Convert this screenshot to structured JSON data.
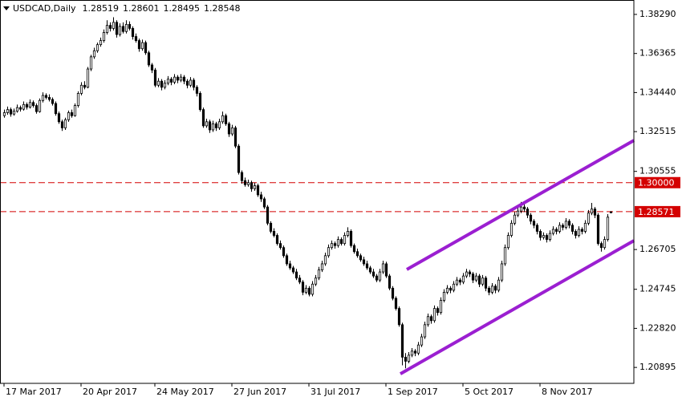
{
  "chart_data": {
    "type": "candlestick",
    "title": "USDCAD,Daily",
    "up_color": "#ffffff",
    "down_color": "#000000",
    "line_color": "#000000",
    "ylim": [
      1.2011,
      1.39
    ],
    "xlim": [
      -1.25,
      196.25
    ],
    "yticks": [
      {
        "value": 1.3829,
        "label": "1.38290"
      },
      1.36365,
      {
        "value": 1.3444,
        "label": "1.34440"
      },
      1.32515,
      1.30555,
      1.26705,
      1.24745,
      {
        "value": 1.2282,
        "label": "1.22820"
      },
      1.20895
    ],
    "xticks": [
      {
        "value": 0,
        "label": "17 Mar 2017"
      },
      {
        "value": 24,
        "label": "20 Apr 2017"
      },
      {
        "value": 47,
        "label": "24 May 2017"
      },
      {
        "value": 71,
        "label": "27 Jun 2017"
      },
      {
        "value": 95,
        "label": "31 Jul 2017"
      },
      {
        "value": 119,
        "label": "1 Sep 2017"
      },
      {
        "value": 143,
        "label": "5 Oct 2017"
      },
      {
        "value": 167,
        "label": "8 Nov 2017"
      }
    ],
    "levels": [
      {
        "value": 1.3,
        "label": "1.30000"
      },
      1.28571
    ],
    "level_color": "#d40000",
    "trendlines": [
      {
        "color": "#9b1fd1",
        "x": [
          125.5,
          196.25
        ],
        "y": [
          1.2572,
          1.3208
        ]
      },
      {
        "color": "#9b1fd1",
        "x": [
          123.5,
          196.25
        ],
        "y": [
          1.2058,
          1.2714
        ]
      }
    ],
    "candles": [
      [
        1.333,
        1.336,
        1.332,
        1.3345
      ],
      [
        1.3345,
        1.3375,
        1.3335,
        1.336
      ],
      [
        1.336,
        1.337,
        1.3325,
        1.3338
      ],
      [
        1.3338,
        1.3365,
        1.333,
        1.3352
      ],
      [
        1.3352,
        1.3385,
        1.3345,
        1.337
      ],
      [
        1.337,
        1.338,
        1.335,
        1.3362
      ],
      [
        1.3362,
        1.34,
        1.3355,
        1.3385
      ],
      [
        1.3385,
        1.3395,
        1.336,
        1.3372
      ],
      [
        1.3372,
        1.341,
        1.3365,
        1.3395
      ],
      [
        1.3395,
        1.3405,
        1.337,
        1.338
      ],
      [
        1.338,
        1.339,
        1.334,
        1.335
      ],
      [
        1.335,
        1.3415,
        1.3345,
        1.3405
      ],
      [
        1.3405,
        1.3445,
        1.3395,
        1.343
      ],
      [
        1.343,
        1.344,
        1.341,
        1.342
      ],
      [
        1.342,
        1.3435,
        1.34,
        1.341
      ],
      [
        1.341,
        1.342,
        1.338,
        1.339
      ],
      [
        1.339,
        1.34,
        1.333,
        1.334
      ],
      [
        1.334,
        1.335,
        1.329,
        1.33
      ],
      [
        1.33,
        1.331,
        1.3255,
        1.327
      ],
      [
        1.327,
        1.332,
        1.326,
        1.331
      ],
      [
        1.331,
        1.3355,
        1.33,
        1.3345
      ],
      [
        1.3345,
        1.336,
        1.332,
        1.333
      ],
      [
        1.333,
        1.339,
        1.3325,
        1.338
      ],
      [
        1.338,
        1.345,
        1.337,
        1.344
      ],
      [
        1.344,
        1.3495,
        1.343,
        1.348
      ],
      [
        1.348,
        1.35,
        1.346,
        1.347
      ],
      [
        1.347,
        1.357,
        1.3465,
        1.356
      ],
      [
        1.356,
        1.363,
        1.355,
        1.362
      ],
      [
        1.362,
        1.3665,
        1.361,
        1.365
      ],
      [
        1.365,
        1.369,
        1.364,
        1.368
      ],
      [
        1.368,
        1.3715,
        1.367,
        1.37
      ],
      [
        1.37,
        1.3755,
        1.369,
        1.374
      ],
      [
        1.374,
        1.38,
        1.373,
        1.3775
      ],
      [
        1.3775,
        1.379,
        1.3745,
        1.376
      ],
      [
        1.376,
        1.3815,
        1.375,
        1.379
      ],
      [
        1.379,
        1.38,
        1.3715,
        1.373
      ],
      [
        1.373,
        1.3785,
        1.372,
        1.377
      ],
      [
        1.377,
        1.379,
        1.3735,
        1.3745
      ],
      [
        1.3745,
        1.38,
        1.3735,
        1.378
      ],
      [
        1.378,
        1.3795,
        1.375,
        1.376
      ],
      [
        1.376,
        1.377,
        1.3705,
        1.372
      ],
      [
        1.372,
        1.3735,
        1.369,
        1.37
      ],
      [
        1.37,
        1.371,
        1.3645,
        1.366
      ],
      [
        1.366,
        1.3705,
        1.365,
        1.369
      ],
      [
        1.369,
        1.37,
        1.363,
        1.364
      ],
      [
        1.364,
        1.365,
        1.357,
        1.358
      ],
      [
        1.358,
        1.359,
        1.354,
        1.3555
      ],
      [
        1.3555,
        1.3565,
        1.347,
        1.348
      ],
      [
        1.348,
        1.3515,
        1.347,
        1.35
      ],
      [
        1.35,
        1.351,
        1.3455,
        1.347
      ],
      [
        1.347,
        1.3505,
        1.346,
        1.349
      ],
      [
        1.349,
        1.3525,
        1.348,
        1.351
      ],
      [
        1.351,
        1.352,
        1.348,
        1.3495
      ],
      [
        1.3495,
        1.3535,
        1.3485,
        1.352
      ],
      [
        1.352,
        1.353,
        1.349,
        1.3505
      ],
      [
        1.3505,
        1.3535,
        1.3495,
        1.352
      ],
      [
        1.352,
        1.353,
        1.3485,
        1.35
      ],
      [
        1.35,
        1.351,
        1.3465,
        1.348
      ],
      [
        1.348,
        1.352,
        1.347,
        1.3505
      ],
      [
        1.3505,
        1.3515,
        1.3455,
        1.347
      ],
      [
        1.347,
        1.348,
        1.3425,
        1.344
      ],
      [
        1.344,
        1.345,
        1.335,
        1.336
      ],
      [
        1.336,
        1.337,
        1.327,
        1.328
      ],
      [
        1.328,
        1.3315,
        1.327,
        1.33
      ],
      [
        1.33,
        1.331,
        1.3245,
        1.326
      ],
      [
        1.326,
        1.3305,
        1.325,
        1.329
      ],
      [
        1.329,
        1.33,
        1.3255,
        1.327
      ],
      [
        1.327,
        1.3315,
        1.326,
        1.33
      ],
      [
        1.33,
        1.335,
        1.329,
        1.333
      ],
      [
        1.333,
        1.334,
        1.328,
        1.329
      ],
      [
        1.329,
        1.33,
        1.3225,
        1.324
      ],
      [
        1.324,
        1.3285,
        1.323,
        1.327
      ],
      [
        1.327,
        1.328,
        1.317,
        1.318
      ],
      [
        1.318,
        1.319,
        1.304,
        1.305
      ],
      [
        1.305,
        1.306,
        1.2995,
        1.301
      ],
      [
        1.301,
        1.3025,
        1.298,
        1.299
      ],
      [
        1.299,
        1.3015,
        1.298,
        1.3
      ],
      [
        1.3,
        1.301,
        1.2955,
        1.297
      ],
      [
        1.297,
        1.3,
        1.296,
        1.2985
      ],
      [
        1.2985,
        1.2995,
        1.293,
        1.294
      ],
      [
        1.294,
        1.2955,
        1.2905,
        1.292
      ],
      [
        1.292,
        1.293,
        1.287,
        1.288
      ],
      [
        1.288,
        1.289,
        1.279,
        1.28
      ],
      [
        1.28,
        1.281,
        1.275,
        1.276
      ],
      [
        1.276,
        1.2775,
        1.273,
        1.274
      ],
      [
        1.274,
        1.275,
        1.269,
        1.27
      ],
      [
        1.27,
        1.2715,
        1.267,
        1.268
      ],
      [
        1.268,
        1.269,
        1.263,
        1.264
      ],
      [
        1.264,
        1.265,
        1.259,
        1.26
      ],
      [
        1.26,
        1.2615,
        1.257,
        1.258
      ],
      [
        1.258,
        1.259,
        1.255,
        1.256
      ],
      [
        1.256,
        1.2575,
        1.252,
        1.253
      ],
      [
        1.253,
        1.2545,
        1.25,
        1.251
      ],
      [
        1.251,
        1.252,
        1.2445,
        1.246
      ],
      [
        1.246,
        1.2495,
        1.245,
        1.248
      ],
      [
        1.248,
        1.249,
        1.244,
        1.245
      ],
      [
        1.245,
        1.2515,
        1.244,
        1.25
      ],
      [
        1.25,
        1.2545,
        1.249,
        1.253
      ],
      [
        1.253,
        1.2585,
        1.252,
        1.257
      ],
      [
        1.257,
        1.2615,
        1.256,
        1.26
      ],
      [
        1.26,
        1.2655,
        1.259,
        1.264
      ],
      [
        1.264,
        1.2695,
        1.263,
        1.268
      ],
      [
        1.268,
        1.2715,
        1.267,
        1.27
      ],
      [
        1.27,
        1.271,
        1.2675,
        1.269
      ],
      [
        1.269,
        1.2735,
        1.268,
        1.272
      ],
      [
        1.272,
        1.273,
        1.269,
        1.27
      ],
      [
        1.27,
        1.2755,
        1.269,
        1.274
      ],
      [
        1.274,
        1.278,
        1.273,
        1.276
      ],
      [
        1.276,
        1.277,
        1.268,
        1.269
      ],
      [
        1.269,
        1.27,
        1.265,
        1.266
      ],
      [
        1.266,
        1.2675,
        1.263,
        1.264
      ],
      [
        1.264,
        1.265,
        1.261,
        1.262
      ],
      [
        1.262,
        1.2635,
        1.259,
        1.26
      ],
      [
        1.26,
        1.2615,
        1.257,
        1.258
      ],
      [
        1.258,
        1.259,
        1.255,
        1.256
      ],
      [
        1.256,
        1.2575,
        1.253,
        1.254
      ],
      [
        1.254,
        1.255,
        1.251,
        1.252
      ],
      [
        1.252,
        1.2575,
        1.251,
        1.256
      ],
      [
        1.256,
        1.2615,
        1.255,
        1.26
      ],
      [
        1.26,
        1.261,
        1.253,
        1.254
      ],
      [
        1.254,
        1.255,
        1.247,
        1.248
      ],
      [
        1.248,
        1.249,
        1.242,
        1.243
      ],
      [
        1.243,
        1.244,
        1.237,
        1.238
      ],
      [
        1.238,
        1.239,
        1.229,
        1.23
      ],
      [
        1.23,
        1.231,
        1.21,
        1.214
      ],
      [
        1.214,
        1.216,
        1.2085,
        1.212
      ],
      [
        1.212,
        1.2165,
        1.211,
        1.215
      ],
      [
        1.215,
        1.2185,
        1.214,
        1.217
      ],
      [
        1.217,
        1.218,
        1.2145,
        1.216
      ],
      [
        1.216,
        1.2215,
        1.215,
        1.22
      ],
      [
        1.22,
        1.2255,
        1.219,
        1.224
      ],
      [
        1.224,
        1.2315,
        1.223,
        1.23
      ],
      [
        1.23,
        1.2355,
        1.229,
        1.234
      ],
      [
        1.234,
        1.235,
        1.2305,
        1.232
      ],
      [
        1.232,
        1.2395,
        1.231,
        1.238
      ],
      [
        1.238,
        1.239,
        1.2345,
        1.236
      ],
      [
        1.236,
        1.2435,
        1.235,
        1.242
      ],
      [
        1.242,
        1.2475,
        1.241,
        1.246
      ],
      [
        1.246,
        1.2495,
        1.245,
        1.248
      ],
      [
        1.248,
        1.249,
        1.2455,
        1.247
      ],
      [
        1.247,
        1.2515,
        1.246,
        1.25
      ],
      [
        1.25,
        1.2535,
        1.249,
        1.252
      ],
      [
        1.252,
        1.253,
        1.2495,
        1.251
      ],
      [
        1.251,
        1.2555,
        1.25,
        1.254
      ],
      [
        1.254,
        1.2575,
        1.253,
        1.256
      ],
      [
        1.256,
        1.257,
        1.2535,
        1.255
      ],
      [
        1.255,
        1.256,
        1.2505,
        1.252
      ],
      [
        1.252,
        1.2555,
        1.251,
        1.254
      ],
      [
        1.254,
        1.255,
        1.2485,
        1.25
      ],
      [
        1.25,
        1.2545,
        1.249,
        1.253
      ],
      [
        1.253,
        1.254,
        1.2465,
        1.248
      ],
      [
        1.248,
        1.249,
        1.2445,
        1.246
      ],
      [
        1.246,
        1.2505,
        1.245,
        1.249
      ],
      [
        1.249,
        1.25,
        1.2455,
        1.247
      ],
      [
        1.247,
        1.2535,
        1.246,
        1.252
      ],
      [
        1.252,
        1.2615,
        1.251,
        1.26
      ],
      [
        1.26,
        1.2695,
        1.259,
        1.268
      ],
      [
        1.268,
        1.2755,
        1.267,
        1.274
      ],
      [
        1.274,
        1.2815,
        1.273,
        1.28
      ],
      [
        1.28,
        1.2855,
        1.279,
        1.284
      ],
      [
        1.284,
        1.288,
        1.283,
        1.286
      ],
      [
        1.286,
        1.2905,
        1.285,
        1.288
      ],
      [
        1.288,
        1.2895,
        1.2855,
        1.287
      ],
      [
        1.287,
        1.288,
        1.2825,
        1.284
      ],
      [
        1.284,
        1.285,
        1.2795,
        1.281
      ],
      [
        1.281,
        1.282,
        1.2775,
        1.279
      ],
      [
        1.279,
        1.28,
        1.2745,
        1.276
      ],
      [
        1.276,
        1.277,
        1.2715,
        1.273
      ],
      [
        1.273,
        1.2755,
        1.272,
        1.274
      ],
      [
        1.274,
        1.275,
        1.2705,
        1.272
      ],
      [
        1.272,
        1.2765,
        1.271,
        1.275
      ],
      [
        1.275,
        1.2785,
        1.274,
        1.277
      ],
      [
        1.277,
        1.278,
        1.2745,
        1.276
      ],
      [
        1.276,
        1.2805,
        1.275,
        1.279
      ],
      [
        1.279,
        1.28,
        1.2765,
        1.278
      ],
      [
        1.278,
        1.2825,
        1.277,
        1.281
      ],
      [
        1.281,
        1.282,
        1.2775,
        1.279
      ],
      [
        1.279,
        1.28,
        1.2745,
        1.276
      ],
      [
        1.276,
        1.277,
        1.2725,
        1.274
      ],
      [
        1.274,
        1.2785,
        1.273,
        1.277
      ],
      [
        1.277,
        1.278,
        1.2745,
        1.276
      ],
      [
        1.276,
        1.2815,
        1.275,
        1.28
      ],
      [
        1.28,
        1.2865,
        1.279,
        1.285
      ],
      [
        1.285,
        1.29,
        1.284,
        1.287
      ],
      [
        1.287,
        1.288,
        1.2825,
        1.284
      ],
      [
        1.284,
        1.285,
        1.269,
        1.27
      ],
      [
        1.27,
        1.271,
        1.266,
        1.268
      ],
      [
        1.268,
        1.2735,
        1.267,
        1.272
      ],
      [
        1.272,
        1.2845,
        1.271,
        1.283
      ],
      [
        1.28519,
        1.28601,
        1.28495,
        1.28548
      ]
    ]
  }
}
